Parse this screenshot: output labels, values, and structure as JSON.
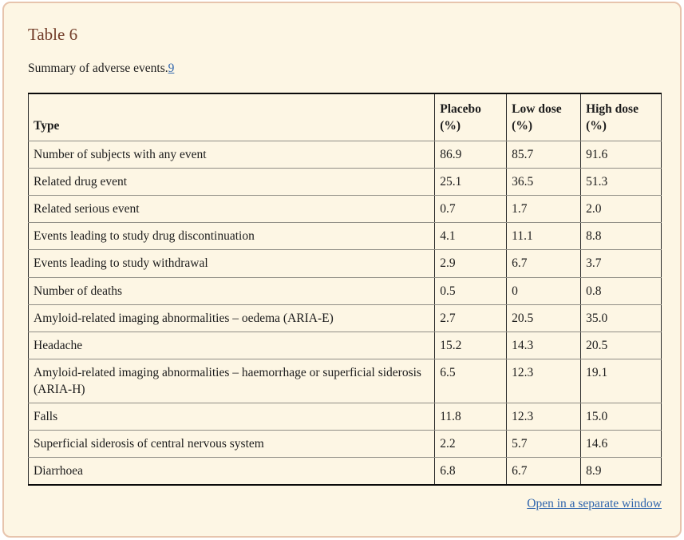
{
  "header": {
    "title": "Table 6",
    "caption": "Summary of adverse events.",
    "caption_ref": "9"
  },
  "table": {
    "columns": [
      {
        "label": "Type",
        "unit": ""
      },
      {
        "label": "Placebo",
        "unit": "(%)"
      },
      {
        "label": "Low dose",
        "unit": "(%)"
      },
      {
        "label": "High dose",
        "unit": "(%)"
      }
    ],
    "rows": [
      {
        "type": "Number of subjects with any event",
        "placebo": "86.9",
        "low_dose": "85.7",
        "high_dose": "91.6"
      },
      {
        "type": "Related drug event",
        "placebo": "25.1",
        "low_dose": "36.5",
        "high_dose": "51.3"
      },
      {
        "type": "Related serious event",
        "placebo": "0.7",
        "low_dose": "1.7",
        "high_dose": "2.0"
      },
      {
        "type": "Events leading to study drug discontinuation",
        "placebo": "4.1",
        "low_dose": "11.1",
        "high_dose": "8.8"
      },
      {
        "type": "Events leading to study withdrawal",
        "placebo": "2.9",
        "low_dose": "6.7",
        "high_dose": "3.7"
      },
      {
        "type": "Number of deaths",
        "placebo": "0.5",
        "low_dose": "0",
        "high_dose": "0.8"
      },
      {
        "type": "Amyloid-related imaging abnormalities – oedema (ARIA-E)",
        "placebo": "2.7",
        "low_dose": "20.5",
        "high_dose": "35.0"
      },
      {
        "type": "Headache",
        "placebo": "15.2",
        "low_dose": "14.3",
        "high_dose": "20.5"
      },
      {
        "type": "Amyloid-related imaging abnormalities – haemorrhage or superficial siderosis (ARIA-H)",
        "placebo": "6.5",
        "low_dose": "12.3",
        "high_dose": "19.1"
      },
      {
        "type": "Falls",
        "placebo": "11.8",
        "low_dose": "12.3",
        "high_dose": "15.0"
      },
      {
        "type": "Superficial siderosis of central nervous system",
        "placebo": "2.2",
        "low_dose": "5.7",
        "high_dose": "14.6"
      },
      {
        "type": "Diarrhoea",
        "placebo": "6.8",
        "low_dose": "6.7",
        "high_dose": "8.9"
      }
    ]
  },
  "footer": {
    "open_link": "Open in a separate window"
  },
  "colors": {
    "card_background": "#fdf6e4",
    "card_border": "#e7c4ad",
    "title_text": "#723c28",
    "body_text": "#1c1c1c",
    "link": "#3166ad",
    "table_outer_border": "#0a0a0a",
    "table_column_border": "#2a2a2a",
    "table_row_border": "#908e86"
  }
}
